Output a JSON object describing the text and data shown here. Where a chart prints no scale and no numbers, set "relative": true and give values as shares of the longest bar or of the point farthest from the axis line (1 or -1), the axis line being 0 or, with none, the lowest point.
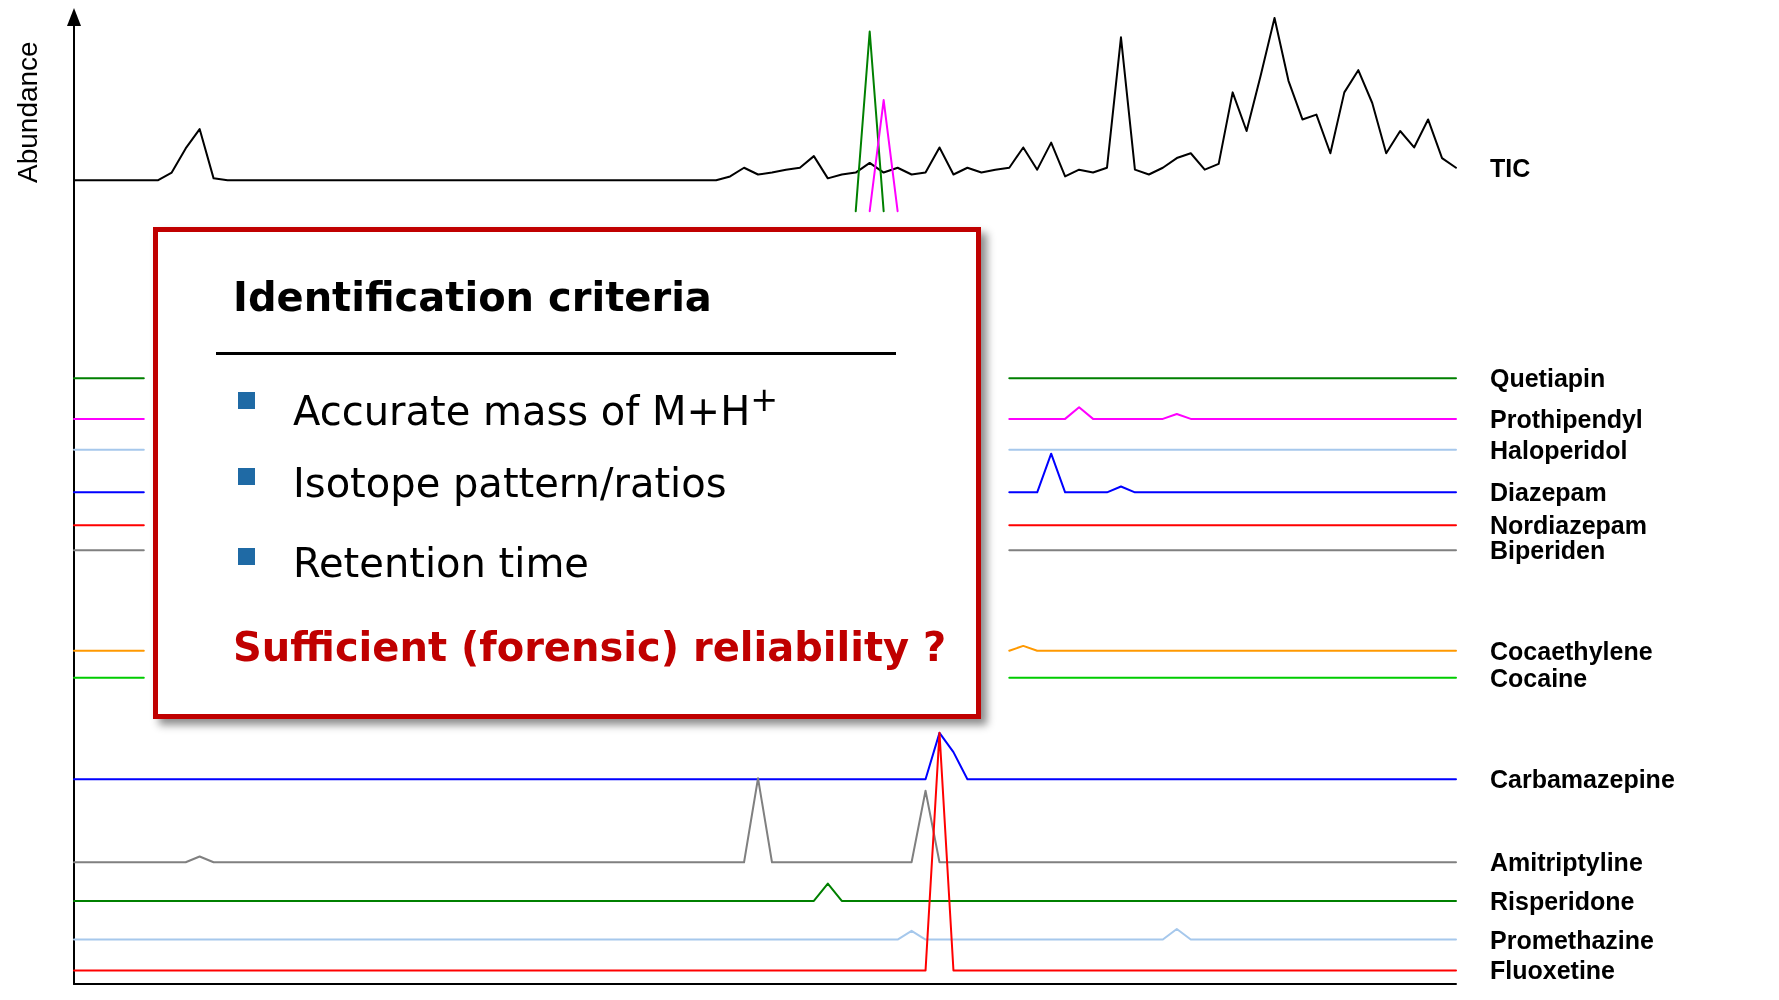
{
  "chart_data": {
    "type": "line",
    "relative": true,
    "ylabel": "Abundance",
    "categories": [
      null,
      null,
      null,
      null,
      null,
      null,
      null,
      null,
      null,
      null,
      null,
      null,
      null,
      null,
      null,
      null,
      null,
      null,
      null,
      null,
      null,
      null,
      null,
      null,
      null,
      null,
      null,
      null,
      null,
      null,
      null,
      null,
      null,
      null,
      null,
      null,
      null,
      null,
      null,
      null,
      null,
      null,
      null,
      null,
      null,
      null,
      null,
      null,
      null,
      null,
      null,
      null,
      null,
      null,
      null,
      null,
      null,
      null,
      null,
      null,
      null,
      null,
      null,
      null,
      null,
      null,
      null,
      null,
      null,
      null,
      null,
      null,
      null,
      null,
      null,
      null,
      null,
      null,
      null,
      null,
      null,
      null,
      null,
      null,
      null,
      null,
      null,
      null,
      null,
      null,
      null,
      null,
      null,
      null,
      null,
      null,
      null,
      null,
      null,
      null
    ],
    "annotations": [
      "Identification criteria",
      "Accurate mass of M+H$^{+}$",
      "Isotope pattern/ratios",
      "Retention time",
      "Sufficient (forensic) reliability ?"
    ],
    "series": [
      {
        "name": "TIC",
        "color": "#000000",
        "values": [
          0.832,
          0.832,
          0.832,
          0.832,
          0.832,
          0.832,
          0.832,
          0.84,
          0.865,
          0.885,
          0.834,
          0.832,
          0.832,
          0.832,
          0.832,
          0.832,
          0.832,
          0.832,
          0.832,
          0.832,
          0.832,
          0.832,
          0.832,
          0.832,
          0.832,
          0.832,
          0.832,
          0.832,
          0.832,
          0.832,
          0.832,
          0.832,
          0.832,
          0.832,
          0.832,
          0.832,
          0.832,
          0.832,
          0.832,
          0.832,
          0.832,
          0.832,
          0.832,
          0.832,
          0.832,
          0.832,
          0.832,
          0.836,
          0.845,
          0.838,
          0.84,
          0.843,
          0.845,
          0.857,
          0.834,
          0.838,
          0.84,
          0.85,
          0.84,
          0.845,
          0.838,
          0.84,
          0.866,
          0.838,
          0.845,
          0.84,
          0.843,
          0.845,
          0.866,
          0.843,
          0.871,
          0.836,
          0.843,
          0.84,
          0.845,
          0.98,
          0.843,
          0.838,
          0.845,
          0.855,
          0.86,
          0.843,
          0.849,
          0.923,
          0.883,
          0.94,
          1.0,
          0.935,
          0.895,
          0.9,
          0.86,
          0.923,
          0.946,
          0.912,
          0.86,
          0.883,
          0.866,
          0.895,
          0.855,
          0.845
        ]
      },
      {
        "name": "Quetiapin",
        "color": "#008000",
        "values": [
          0.627,
          0.627,
          0.627,
          0.627,
          0.627,
          0.627,
          null,
          null,
          null,
          null,
          null,
          null,
          null,
          null,
          null,
          null,
          null,
          null,
          null,
          null,
          null,
          null,
          null,
          null,
          null,
          null,
          null,
          null,
          null,
          null,
          null,
          null,
          null,
          null,
          null,
          null,
          null,
          null,
          null,
          null,
          null,
          null,
          null,
          null,
          null,
          null,
          null,
          null,
          null,
          null,
          null,
          null,
          null,
          null,
          null,
          null,
          0.8,
          0.986,
          0.8,
          null,
          null,
          null,
          null,
          null,
          null,
          null,
          null,
          0.627,
          0.627,
          0.627,
          0.627,
          0.627,
          0.627,
          0.627,
          0.627,
          0.627,
          0.627,
          0.627,
          0.627,
          0.627,
          0.627,
          0.627,
          0.627,
          0.627,
          0.627,
          0.627,
          0.627,
          0.627,
          0.627,
          0.627,
          0.627,
          0.627,
          0.627,
          0.627,
          0.627,
          0.627,
          0.627,
          0.627,
          0.627,
          0.627
        ]
      },
      {
        "name": "Prothipendyl",
        "color": "#ff00ff",
        "values": [
          0.585,
          0.585,
          0.585,
          0.585,
          0.585,
          0.585,
          null,
          null,
          null,
          null,
          null,
          null,
          null,
          null,
          null,
          null,
          null,
          null,
          null,
          null,
          null,
          null,
          null,
          null,
          null,
          null,
          null,
          null,
          null,
          null,
          null,
          null,
          null,
          null,
          null,
          null,
          null,
          null,
          null,
          null,
          null,
          null,
          null,
          null,
          null,
          null,
          null,
          null,
          null,
          null,
          null,
          null,
          null,
          null,
          null,
          null,
          null,
          0.8,
          0.915,
          0.8,
          null,
          null,
          null,
          null,
          null,
          null,
          null,
          0.585,
          0.585,
          0.585,
          0.585,
          0.585,
          0.597,
          0.585,
          0.585,
          0.585,
          0.585,
          0.585,
          0.585,
          0.59,
          0.585,
          0.585,
          0.585,
          0.585,
          0.585,
          0.585,
          0.585,
          0.585,
          0.585,
          0.585,
          0.585,
          0.585,
          0.585,
          0.585,
          0.585,
          0.585,
          0.585,
          0.585,
          0.585,
          0.585
        ]
      },
      {
        "name": "Haloperidol",
        "color": "#a6c8ec",
        "values": [
          0.553,
          0.553,
          0.553,
          0.553,
          0.553,
          0.553,
          null,
          null,
          null,
          null,
          null,
          null,
          null,
          null,
          null,
          null,
          null,
          null,
          null,
          null,
          null,
          null,
          null,
          null,
          null,
          null,
          null,
          null,
          null,
          null,
          null,
          null,
          null,
          null,
          null,
          null,
          null,
          null,
          null,
          null,
          null,
          null,
          null,
          null,
          null,
          null,
          null,
          null,
          null,
          null,
          null,
          null,
          null,
          null,
          null,
          null,
          null,
          null,
          null,
          null,
          null,
          null,
          null,
          null,
          null,
          null,
          null,
          0.553,
          0.553,
          0.553,
          0.553,
          0.553,
          0.553,
          0.553,
          0.553,
          0.553,
          0.553,
          0.553,
          0.553,
          0.553,
          0.553,
          0.553,
          0.553,
          0.553,
          0.553,
          0.553,
          0.553,
          0.553,
          0.553,
          0.553,
          0.553,
          0.553,
          0.553,
          0.553,
          0.553,
          0.553,
          0.553,
          0.553,
          0.553,
          0.553
        ]
      },
      {
        "name": "Diazepam",
        "color": "#0000ff",
        "values": [
          0.509,
          0.509,
          0.509,
          0.509,
          0.509,
          0.509,
          null,
          null,
          null,
          null,
          null,
          null,
          null,
          null,
          null,
          null,
          null,
          null,
          null,
          null,
          null,
          null,
          null,
          null,
          null,
          null,
          null,
          null,
          null,
          null,
          null,
          null,
          null,
          null,
          null,
          null,
          null,
          null,
          null,
          null,
          null,
          null,
          null,
          null,
          null,
          null,
          null,
          null,
          null,
          null,
          null,
          null,
          null,
          null,
          null,
          null,
          null,
          null,
          null,
          null,
          null,
          null,
          null,
          null,
          null,
          null,
          null,
          0.509,
          0.509,
          0.509,
          0.549,
          0.509,
          0.509,
          0.509,
          0.509,
          0.515,
          0.509,
          0.509,
          0.509,
          0.509,
          0.509,
          0.509,
          0.509,
          0.509,
          0.509,
          0.509,
          0.509,
          0.509,
          0.509,
          0.509,
          0.509,
          0.509,
          0.509,
          0.509,
          0.509,
          0.509,
          0.509,
          0.509,
          0.509,
          0.509
        ]
      },
      {
        "name": "Nordiazepam",
        "color": "#ff0000",
        "values": [
          0.475,
          0.475,
          0.475,
          0.475,
          0.475,
          0.475,
          null,
          null,
          null,
          null,
          null,
          null,
          null,
          null,
          null,
          null,
          null,
          null,
          null,
          null,
          null,
          null,
          null,
          null,
          null,
          null,
          null,
          null,
          null,
          null,
          null,
          null,
          null,
          null,
          null,
          null,
          null,
          null,
          null,
          null,
          null,
          null,
          null,
          null,
          null,
          null,
          null,
          null,
          null,
          null,
          null,
          null,
          null,
          null,
          null,
          null,
          null,
          null,
          null,
          null,
          null,
          null,
          null,
          null,
          null,
          null,
          null,
          0.475,
          0.475,
          0.475,
          0.475,
          0.475,
          0.475,
          0.475,
          0.475,
          0.475,
          0.475,
          0.475,
          0.475,
          0.475,
          0.475,
          0.475,
          0.475,
          0.475,
          0.475,
          0.475,
          0.475,
          0.475,
          0.475,
          0.475,
          0.475,
          0.475,
          0.475,
          0.475,
          0.475,
          0.475,
          0.475,
          0.475,
          0.475,
          0.475
        ]
      },
      {
        "name": "Biperiden",
        "color": "#808080",
        "values": [
          0.449,
          0.449,
          0.449,
          0.449,
          0.449,
          0.449,
          null,
          null,
          null,
          null,
          null,
          null,
          null,
          null,
          null,
          null,
          null,
          null,
          null,
          null,
          null,
          null,
          null,
          null,
          null,
          null,
          null,
          null,
          null,
          null,
          null,
          null,
          null,
          null,
          null,
          null,
          null,
          null,
          null,
          null,
          null,
          null,
          null,
          null,
          null,
          null,
          null,
          null,
          null,
          null,
          null,
          null,
          null,
          null,
          null,
          null,
          null,
          null,
          null,
          null,
          null,
          null,
          null,
          null,
          null,
          null,
          null,
          0.449,
          0.449,
          0.449,
          0.449,
          0.449,
          0.449,
          0.449,
          0.449,
          0.449,
          0.449,
          0.449,
          0.449,
          0.449,
          0.449,
          0.449,
          0.449,
          0.449,
          0.449,
          0.449,
          0.449,
          0.449,
          0.449,
          0.449,
          0.449,
          0.449,
          0.449,
          0.449,
          0.449,
          0.449,
          0.449,
          0.449,
          0.449,
          0.449
        ]
      },
      {
        "name": "Cocaethylene",
        "color": "#ff9900",
        "values": [
          0.345,
          0.345,
          0.345,
          0.345,
          0.345,
          0.345,
          null,
          null,
          null,
          null,
          null,
          null,
          null,
          null,
          null,
          null,
          null,
          null,
          null,
          null,
          null,
          null,
          null,
          null,
          null,
          null,
          null,
          null,
          null,
          null,
          null,
          null,
          null,
          null,
          null,
          null,
          null,
          null,
          null,
          null,
          null,
          null,
          null,
          null,
          null,
          null,
          null,
          null,
          null,
          null,
          null,
          null,
          null,
          null,
          null,
          null,
          null,
          null,
          null,
          null,
          null,
          null,
          null,
          null,
          null,
          null,
          null,
          0.345,
          0.35,
          0.345,
          0.345,
          0.345,
          0.345,
          0.345,
          0.345,
          0.345,
          0.345,
          0.345,
          0.345,
          0.345,
          0.345,
          0.345,
          0.345,
          0.345,
          0.345,
          0.345,
          0.345,
          0.345,
          0.345,
          0.345,
          0.345,
          0.345,
          0.345,
          0.345,
          0.345,
          0.345,
          0.345,
          0.345,
          0.345,
          0.345
        ]
      },
      {
        "name": "Cocaine",
        "color": "#00cc00",
        "values": [
          0.317,
          0.317,
          0.317,
          0.317,
          0.317,
          0.317,
          null,
          null,
          null,
          null,
          null,
          null,
          null,
          null,
          null,
          null,
          null,
          null,
          null,
          null,
          null,
          null,
          null,
          null,
          null,
          null,
          null,
          null,
          null,
          null,
          null,
          null,
          null,
          null,
          null,
          null,
          null,
          null,
          null,
          null,
          null,
          null,
          null,
          null,
          null,
          null,
          null,
          null,
          null,
          null,
          null,
          null,
          null,
          null,
          null,
          null,
          null,
          null,
          null,
          null,
          null,
          null,
          null,
          null,
          null,
          null,
          null,
          0.317,
          0.317,
          0.317,
          0.317,
          0.317,
          0.317,
          0.317,
          0.317,
          0.317,
          0.317,
          0.317,
          0.317,
          0.317,
          0.317,
          0.317,
          0.317,
          0.317,
          0.317,
          0.317,
          0.317,
          0.317,
          0.317,
          0.317,
          0.317,
          0.317,
          0.317,
          0.317,
          0.317,
          0.317,
          0.317,
          0.317,
          0.317,
          0.317
        ]
      },
      {
        "name": "Carbamazepine",
        "color": "#0000ff",
        "values": [
          0.212,
          0.212,
          0.212,
          0.212,
          0.212,
          0.212,
          0.212,
          0.212,
          0.212,
          0.212,
          0.212,
          0.212,
          0.212,
          0.212,
          0.212,
          0.212,
          0.212,
          0.212,
          0.212,
          0.212,
          0.212,
          0.212,
          0.212,
          0.212,
          0.212,
          0.212,
          0.212,
          0.212,
          0.212,
          0.212,
          0.212,
          0.212,
          0.212,
          0.212,
          0.212,
          0.212,
          0.212,
          0.212,
          0.212,
          0.212,
          0.212,
          0.212,
          0.212,
          0.212,
          0.212,
          0.212,
          0.212,
          0.212,
          0.212,
          0.212,
          0.212,
          0.212,
          0.212,
          0.212,
          0.212,
          0.212,
          0.212,
          0.212,
          0.212,
          0.212,
          0.212,
          0.212,
          0.26,
          0.24,
          0.212,
          0.212,
          0.212,
          0.212,
          0.212,
          0.212,
          0.212,
          0.212,
          0.212,
          0.212,
          0.212,
          0.212,
          0.212,
          0.212,
          0.212,
          0.212,
          0.212,
          0.212,
          0.212,
          0.212,
          0.212,
          0.212,
          0.212,
          0.212,
          0.212,
          0.212,
          0.212,
          0.212,
          0.212,
          0.212,
          0.212,
          0.212,
          0.212,
          0.212,
          0.212,
          0.212
        ]
      },
      {
        "name": "Amitriptyline",
        "color": "#808080",
        "values": [
          0.126,
          0.126,
          0.126,
          0.126,
          0.126,
          0.126,
          0.126,
          0.126,
          0.126,
          0.132,
          0.126,
          0.126,
          0.126,
          0.126,
          0.126,
          0.126,
          0.126,
          0.126,
          0.126,
          0.126,
          0.126,
          0.126,
          0.126,
          0.126,
          0.126,
          0.126,
          0.126,
          0.126,
          0.126,
          0.126,
          0.126,
          0.126,
          0.126,
          0.126,
          0.126,
          0.126,
          0.126,
          0.126,
          0.126,
          0.126,
          0.126,
          0.126,
          0.126,
          0.126,
          0.126,
          0.126,
          0.126,
          0.126,
          0.126,
          0.213,
          0.126,
          0.126,
          0.126,
          0.126,
          0.126,
          0.126,
          0.126,
          0.126,
          0.126,
          0.126,
          0.126,
          0.2,
          0.126,
          0.126,
          0.126,
          0.126,
          0.126,
          0.126,
          0.126,
          0.126,
          0.126,
          0.126,
          0.126,
          0.126,
          0.126,
          0.126,
          0.126,
          0.126,
          0.126,
          0.126,
          0.126,
          0.126,
          0.126,
          0.126,
          0.126,
          0.126,
          0.126,
          0.126,
          0.126,
          0.126,
          0.126,
          0.126,
          0.126,
          0.126,
          0.126,
          0.126,
          0.126,
          0.126,
          0.126,
          0.126
        ]
      },
      {
        "name": "Risperidone",
        "color": "#008000",
        "values": [
          0.086,
          0.086,
          0.086,
          0.086,
          0.086,
          0.086,
          0.086,
          0.086,
          0.086,
          0.086,
          0.086,
          0.086,
          0.086,
          0.086,
          0.086,
          0.086,
          0.086,
          0.086,
          0.086,
          0.086,
          0.086,
          0.086,
          0.086,
          0.086,
          0.086,
          0.086,
          0.086,
          0.086,
          0.086,
          0.086,
          0.086,
          0.086,
          0.086,
          0.086,
          0.086,
          0.086,
          0.086,
          0.086,
          0.086,
          0.086,
          0.086,
          0.086,
          0.086,
          0.086,
          0.086,
          0.086,
          0.086,
          0.086,
          0.086,
          0.086,
          0.086,
          0.086,
          0.086,
          0.086,
          0.104,
          0.086,
          0.086,
          0.086,
          0.086,
          0.086,
          0.086,
          0.086,
          0.086,
          0.086,
          0.086,
          0.086,
          0.086,
          0.086,
          0.086,
          0.086,
          0.086,
          0.086,
          0.086,
          0.086,
          0.086,
          0.086,
          0.086,
          0.086,
          0.086,
          0.086,
          0.086,
          0.086,
          0.086,
          0.086,
          0.086,
          0.086,
          0.086,
          0.086,
          0.086,
          0.086,
          0.086,
          0.086,
          0.086,
          0.086,
          0.086,
          0.086,
          0.086,
          0.086,
          0.086,
          0.086
        ]
      },
      {
        "name": "Promethazine",
        "color": "#a6c8ec",
        "values": [
          0.046,
          0.046,
          0.046,
          0.046,
          0.046,
          0.046,
          0.046,
          0.046,
          0.046,
          0.046,
          0.046,
          0.046,
          0.046,
          0.046,
          0.046,
          0.046,
          0.046,
          0.046,
          0.046,
          0.046,
          0.046,
          0.046,
          0.046,
          0.046,
          0.046,
          0.046,
          0.046,
          0.046,
          0.046,
          0.046,
          0.046,
          0.046,
          0.046,
          0.046,
          0.046,
          0.046,
          0.046,
          0.046,
          0.046,
          0.046,
          0.046,
          0.046,
          0.046,
          0.046,
          0.046,
          0.046,
          0.046,
          0.046,
          0.046,
          0.046,
          0.046,
          0.046,
          0.046,
          0.046,
          0.046,
          0.046,
          0.046,
          0.046,
          0.046,
          0.046,
          0.055,
          0.046,
          0.046,
          0.046,
          0.046,
          0.046,
          0.046,
          0.046,
          0.046,
          0.046,
          0.046,
          0.046,
          0.046,
          0.046,
          0.046,
          0.046,
          0.046,
          0.046,
          0.046,
          0.057,
          0.046,
          0.046,
          0.046,
          0.046,
          0.046,
          0.046,
          0.046,
          0.046,
          0.046,
          0.046,
          0.046,
          0.046,
          0.046,
          0.046,
          0.046,
          0.046,
          0.046,
          0.046,
          0.046,
          0.046
        ]
      },
      {
        "name": "Fluoxetine",
        "color": "#ff0000",
        "values": [
          0.014,
          0.014,
          0.014,
          0.014,
          0.014,
          0.014,
          0.014,
          0.014,
          0.014,
          0.014,
          0.014,
          0.014,
          0.014,
          0.014,
          0.014,
          0.014,
          0.014,
          0.014,
          0.014,
          0.014,
          0.014,
          0.014,
          0.014,
          0.014,
          0.014,
          0.014,
          0.014,
          0.014,
          0.014,
          0.014,
          0.014,
          0.014,
          0.014,
          0.014,
          0.014,
          0.014,
          0.014,
          0.014,
          0.014,
          0.014,
          0.014,
          0.014,
          0.014,
          0.014,
          0.014,
          0.014,
          0.014,
          0.014,
          0.014,
          0.014,
          0.014,
          0.014,
          0.014,
          0.014,
          0.014,
          0.014,
          0.014,
          0.014,
          0.014,
          0.014,
          0.014,
          0.014,
          0.26,
          0.014,
          0.014,
          0.014,
          0.014,
          0.014,
          0.014,
          0.014,
          0.014,
          0.014,
          0.014,
          0.014,
          0.014,
          0.014,
          0.014,
          0.014,
          0.014,
          0.014,
          0.014,
          0.014,
          0.014,
          0.014,
          0.014,
          0.014,
          0.014,
          0.014,
          0.014,
          0.014,
          0.014,
          0.014,
          0.014,
          0.014,
          0.014,
          0.014,
          0.014,
          0.014,
          0.014,
          0.014
        ]
      }
    ]
  }
}
